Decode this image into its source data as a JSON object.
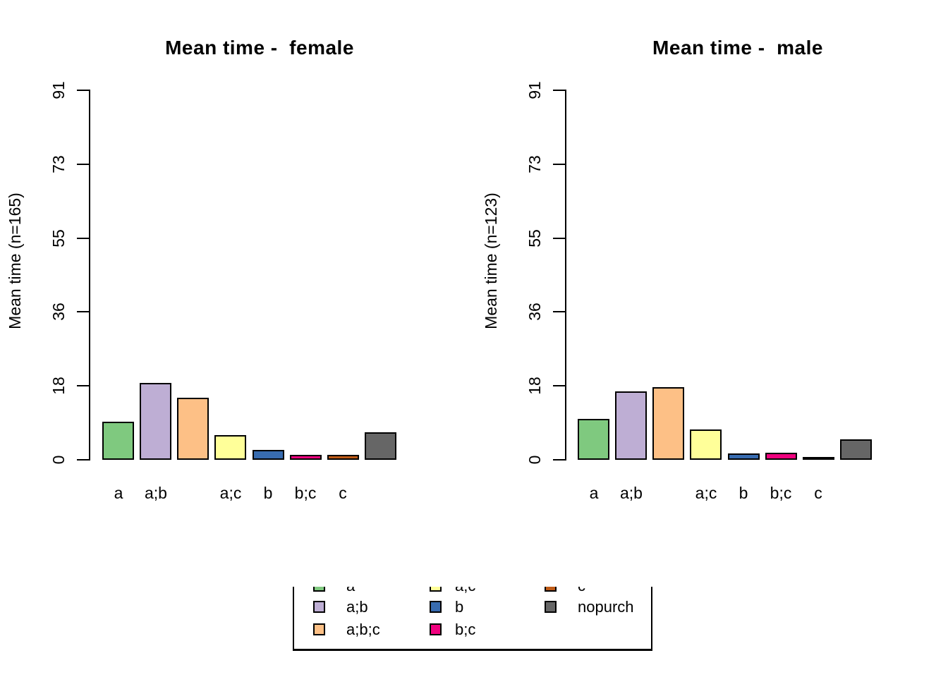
{
  "page": {
    "background": "#ffffff",
    "kind": "R base-graphics barplot panel, 2 charts + shared legend"
  },
  "palette": {
    "a": "#7FC97F",
    "a;b": "#BEAED4",
    "a;b;c": "#FDC086",
    "a;c": "#FFFF99",
    "b": "#386CB0",
    "b;c": "#F0027F",
    "c": "#BF5B17",
    "nopurch": "#666666",
    "bar_border": "#000000"
  },
  "chart_data": [
    {
      "type": "bar",
      "title": "Mean time -  female",
      "ylabel": "Mean time (n=165)",
      "xlabel": "",
      "categories": [
        "a",
        "a;b",
        "a;b;c",
        "a;c",
        "b",
        "b;c",
        "c",
        "nopurch"
      ],
      "values": [
        9.4,
        18.9,
        15.2,
        6.0,
        2.5,
        1.3,
        1.2,
        6.7
      ],
      "xtick_labels": [
        "a",
        "a;b",
        "",
        "a;c",
        "b",
        "b;c",
        "c",
        ""
      ],
      "yticks": [
        {
          "label": "0",
          "value": 0
        },
        {
          "label": "18",
          "value": 18.2
        },
        {
          "label": "36",
          "value": 36.4
        },
        {
          "label": "55",
          "value": 54.6
        },
        {
          "label": "73",
          "value": 72.8
        },
        {
          "label": "91",
          "value": 91
        }
      ],
      "ylim": [
        0,
        91
      ],
      "grid": false,
      "legend_position": "none"
    },
    {
      "type": "bar",
      "title": "Mean time -  male",
      "ylabel": "Mean time (n=123)",
      "xlabel": "",
      "categories": [
        "a",
        "a;b",
        "a;b;c",
        "a;c",
        "b",
        "b;c",
        "c",
        "nopurch"
      ],
      "values": [
        10.1,
        16.9,
        17.9,
        7.4,
        1.5,
        1.8,
        0.3,
        5.1
      ],
      "xtick_labels": [
        "a",
        "a;b",
        "",
        "a;c",
        "b",
        "b;c",
        "c",
        ""
      ],
      "yticks": [
        {
          "label": "0",
          "value": 0
        },
        {
          "label": "18",
          "value": 18.2
        },
        {
          "label": "36",
          "value": 36.4
        },
        {
          "label": "55",
          "value": 54.6
        },
        {
          "label": "73",
          "value": 72.8
        },
        {
          "label": "91",
          "value": 91
        }
      ],
      "ylim": [
        0,
        91
      ],
      "grid": false,
      "legend_position": "none"
    }
  ],
  "legend": {
    "position": "bottom-center",
    "columns": 3,
    "clipped_top_row": true,
    "items": [
      {
        "label": "a",
        "color": "#7FC97F",
        "col": 0,
        "row": 0
      },
      {
        "label": "a;b",
        "color": "#BEAED4",
        "col": 0,
        "row": 1
      },
      {
        "label": "a;b;c",
        "color": "#FDC086",
        "col": 0,
        "row": 2
      },
      {
        "label": "a;c",
        "color": "#FFFF99",
        "col": 1,
        "row": 0
      },
      {
        "label": "b",
        "color": "#386CB0",
        "col": 1,
        "row": 1
      },
      {
        "label": "b;c",
        "color": "#F0027F",
        "col": 1,
        "row": 2
      },
      {
        "label": "c",
        "color": "#BF5B17",
        "col": 2,
        "row": 0
      },
      {
        "label": "nopurch",
        "color": "#666666",
        "col": 2,
        "row": 1
      }
    ]
  }
}
